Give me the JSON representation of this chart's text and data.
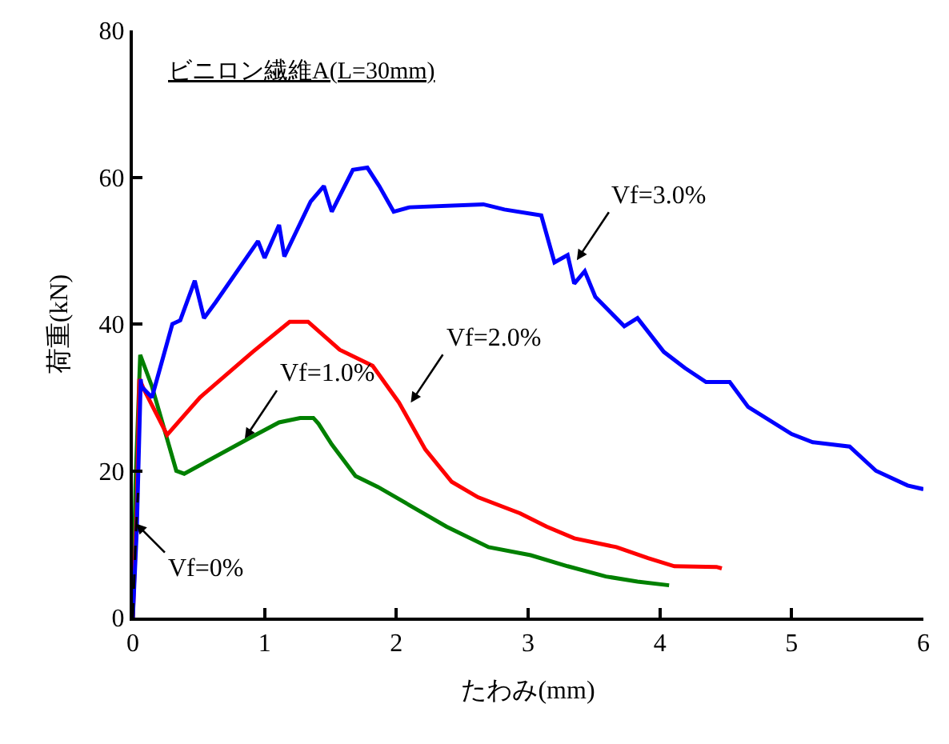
{
  "chart_data": {
    "type": "line",
    "xlabel": "たわみ(mm)",
    "ylabel": "荷重(kN)",
    "xlim": [
      0,
      6
    ],
    "xticks": [
      0,
      1,
      2,
      3,
      4,
      5,
      6
    ],
    "ylim": [
      0,
      80
    ],
    "yticks": [
      0,
      20,
      40,
      60,
      80
    ],
    "marker": "none",
    "series": [
      {
        "color": "#008000",
        "line_style": "solid",
        "x": [
          0,
          0.02,
          0.056,
          0.145,
          0.33,
          0.39,
          0.87,
          1.11,
          1.27,
          1.37,
          1.41,
          1.51,
          1.69,
          1.86,
          2.14,
          2.38,
          2.7,
          3.02,
          3.3,
          3.59,
          3.83,
          4.07
        ],
        "values": [
          0,
          18,
          35.8,
          31.5,
          20,
          19.6,
          24.3,
          26.6,
          27.2,
          27.2,
          26.4,
          23.6,
          19.3,
          17.8,
          14.9,
          12.4,
          9.6,
          8.5,
          7.0,
          5.6,
          4.9,
          4.4
        ]
      },
      {
        "color": "#ff0000",
        "line_style": "solid",
        "x": [
          0,
          0.03,
          0.05,
          0.084,
          0.26,
          0.51,
          0.91,
          1.19,
          1.33,
          1.57,
          1.82,
          2.02,
          2.22,
          2.42,
          2.62,
          2.94,
          3.14,
          3.35,
          3.67,
          3.91,
          4.11,
          4.43,
          4.47
        ],
        "values": [
          0,
          15,
          32.5,
          31.1,
          24.9,
          30,
          36.2,
          40.3,
          40.3,
          36.5,
          34.3,
          29.3,
          22.9,
          18.5,
          16.4,
          14.2,
          12.4,
          10.8,
          9.6,
          8.1,
          7.0,
          6.9,
          6.7
        ]
      },
      {
        "color": "#0000ff",
        "line_style": "solid",
        "x": [
          0,
          0.03,
          0.06,
          0.064,
          0.145,
          0.3,
          0.36,
          0.47,
          0.54,
          0.63,
          0.95,
          1.0,
          1.11,
          1.15,
          1.35,
          1.45,
          1.51,
          1.67,
          1.78,
          1.87,
          1.98,
          2.1,
          2.66,
          2.82,
          3.1,
          3.2,
          3.3,
          3.35,
          3.43,
          3.51,
          3.73,
          3.83,
          4.03,
          4.19,
          4.35,
          4.53,
          4.67,
          5.0,
          5.16,
          5.44,
          5.64,
          5.88,
          6.0
        ],
        "values": [
          0,
          12,
          32.5,
          31.5,
          30,
          40,
          40.5,
          45.9,
          40.8,
          43,
          51.3,
          49,
          53.5,
          49.2,
          56.7,
          58.8,
          55.3,
          61,
          61.3,
          58.8,
          55.3,
          55.9,
          56.3,
          55.6,
          54.8,
          48.4,
          49.4,
          45.5,
          47.2,
          43.7,
          39.7,
          40.8,
          36.2,
          34,
          32.1,
          32.1,
          28.7,
          25.0,
          23.9,
          23.3,
          20,
          18,
          17.5
        ]
      },
      {
        "color": "#000000",
        "line_style": "dashed",
        "x": [
          0,
          0.01,
          0.02,
          0.03,
          0.04
        ],
        "values": [
          0,
          5,
          10,
          14,
          17
        ]
      }
    ],
    "annotations": [
      "ビニロン繊維A(L=30mm)",
      {
        "text": "Vf=0%",
        "x": 0.024,
        "y": 12.8
      },
      {
        "text": "Vf=1.0%",
        "x": 0.85,
        "y": 24.4
      },
      {
        "text": "Vf=2.0%",
        "x": 2.11,
        "y": 29.3
      },
      {
        "text": "Vf=3.0%",
        "x": 3.37,
        "y": 48.7
      }
    ]
  }
}
